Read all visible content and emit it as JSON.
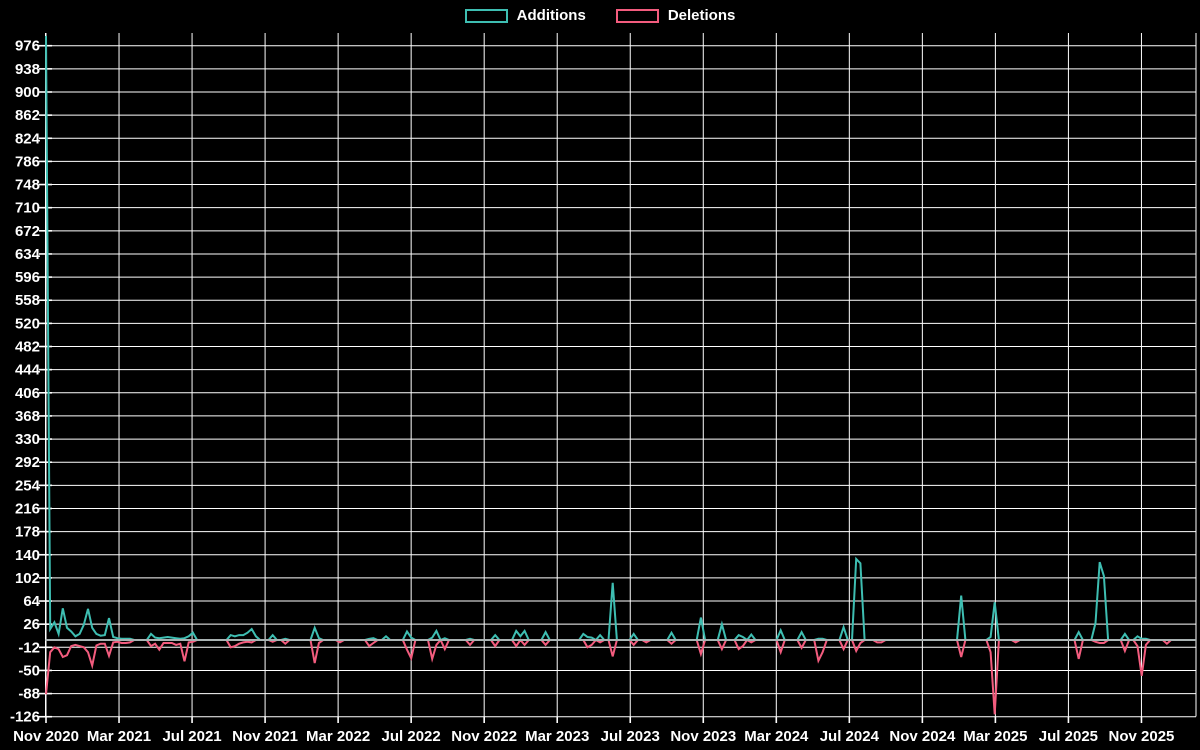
{
  "legend": {
    "items": [
      {
        "label": "Additions",
        "color": "#3ebeb2"
      },
      {
        "label": "Deletions",
        "color": "#f35c7e"
      }
    ]
  },
  "colors": {
    "background": "#000000",
    "grid": "#ffffff",
    "axis_text": "#ffffff",
    "zero_line": "#a9b2b2",
    "additions": "#3ebeb2",
    "deletions": "#f35c7e"
  },
  "chart_data": {
    "type": "line",
    "title": "",
    "xlabel": "",
    "ylabel": "",
    "grid": true,
    "legend_position": "top-center",
    "x_unit": "week",
    "weeks_total": 274,
    "default_value": 0,
    "x_tick_labels": [
      "Nov 2020",
      "Mar 2021",
      "Jul 2021",
      "Nov 2021",
      "Mar 2022",
      "Jul 2022",
      "Nov 2022",
      "Mar 2023",
      "Jul 2023",
      "Nov 2023",
      "Mar 2024",
      "Jul 2024",
      "Nov 2024",
      "Mar 2025",
      "Jul 2025",
      "Nov 2025"
    ],
    "y_axis": {
      "tick_min": -126,
      "tick_max": 976,
      "tick_step": 38,
      "ylim": [
        -126,
        997
      ]
    },
    "series": [
      {
        "name": "Additions",
        "color": "#3ebeb2",
        "sparse_points": [
          [
            0,
            992
          ],
          [
            1,
            18
          ],
          [
            2,
            29
          ],
          [
            3,
            10
          ],
          [
            4,
            52
          ],
          [
            5,
            20
          ],
          [
            6,
            14
          ],
          [
            7,
            6
          ],
          [
            8,
            10
          ],
          [
            9,
            25
          ],
          [
            10,
            51
          ],
          [
            11,
            20
          ],
          [
            12,
            10
          ],
          [
            13,
            7
          ],
          [
            14,
            8
          ],
          [
            15,
            36
          ],
          [
            16,
            5
          ],
          [
            17,
            3
          ],
          [
            18,
            2
          ],
          [
            19,
            2
          ],
          [
            20,
            2
          ],
          [
            25,
            10
          ],
          [
            26,
            4
          ],
          [
            27,
            3
          ],
          [
            28,
            4
          ],
          [
            29,
            5
          ],
          [
            30,
            4
          ],
          [
            31,
            3
          ],
          [
            32,
            2
          ],
          [
            33,
            3
          ],
          [
            34,
            6
          ],
          [
            35,
            12
          ],
          [
            44,
            8
          ],
          [
            45,
            6
          ],
          [
            46,
            8
          ],
          [
            47,
            8
          ],
          [
            48,
            12
          ],
          [
            49,
            18
          ],
          [
            50,
            6
          ],
          [
            54,
            8
          ],
          [
            57,
            2
          ],
          [
            64,
            20
          ],
          [
            65,
            3
          ],
          [
            77,
            2
          ],
          [
            78,
            3
          ],
          [
            81,
            6
          ],
          [
            86,
            14
          ],
          [
            87,
            4
          ],
          [
            92,
            4
          ],
          [
            93,
            15
          ],
          [
            95,
            3
          ],
          [
            101,
            2
          ],
          [
            107,
            8
          ],
          [
            112,
            15
          ],
          [
            113,
            6
          ],
          [
            114,
            15
          ],
          [
            119,
            13
          ],
          [
            128,
            10
          ],
          [
            129,
            5
          ],
          [
            130,
            4
          ],
          [
            132,
            8
          ],
          [
            135,
            94
          ],
          [
            140,
            10
          ],
          [
            149,
            12
          ],
          [
            156,
            37
          ],
          [
            161,
            26
          ],
          [
            165,
            8
          ],
          [
            166,
            5
          ],
          [
            168,
            9
          ],
          [
            175,
            16
          ],
          [
            180,
            13
          ],
          [
            184,
            2
          ],
          [
            185,
            2
          ],
          [
            190,
            21
          ],
          [
            193,
            133
          ],
          [
            194,
            126
          ],
          [
            218,
            73
          ],
          [
            225,
            5
          ],
          [
            226,
            62
          ],
          [
            246,
            13
          ],
          [
            250,
            28
          ],
          [
            251,
            128
          ],
          [
            252,
            105
          ],
          [
            257,
            10
          ],
          [
            260,
            6
          ],
          [
            261,
            2
          ],
          [
            262,
            2
          ]
        ]
      },
      {
        "name": "Deletions",
        "color": "#f35c7e",
        "sparse_points": [
          [
            0,
            -89
          ],
          [
            1,
            -20
          ],
          [
            2,
            -12
          ],
          [
            3,
            -15
          ],
          [
            4,
            -28
          ],
          [
            5,
            -25
          ],
          [
            6,
            -10
          ],
          [
            7,
            -8
          ],
          [
            8,
            -10
          ],
          [
            9,
            -12
          ],
          [
            10,
            -20
          ],
          [
            11,
            -42
          ],
          [
            12,
            -9
          ],
          [
            13,
            -6
          ],
          [
            14,
            -6
          ],
          [
            15,
            -26
          ],
          [
            16,
            -4
          ],
          [
            17,
            -3
          ],
          [
            18,
            -5
          ],
          [
            19,
            -5
          ],
          [
            20,
            -4
          ],
          [
            25,
            -10
          ],
          [
            26,
            -6
          ],
          [
            27,
            -16
          ],
          [
            28,
            -5
          ],
          [
            29,
            -5
          ],
          [
            30,
            -5
          ],
          [
            31,
            -8
          ],
          [
            32,
            -6
          ],
          [
            33,
            -35
          ],
          [
            34,
            -4
          ],
          [
            35,
            -3
          ],
          [
            44,
            -12
          ],
          [
            45,
            -10
          ],
          [
            46,
            -6
          ],
          [
            47,
            -4
          ],
          [
            48,
            -3
          ],
          [
            49,
            -4
          ],
          [
            54,
            -3
          ],
          [
            57,
            -6
          ],
          [
            64,
            -38
          ],
          [
            65,
            -5
          ],
          [
            70,
            -4
          ],
          [
            77,
            -10
          ],
          [
            78,
            -5
          ],
          [
            86,
            -16
          ],
          [
            87,
            -30
          ],
          [
            92,
            -31
          ],
          [
            93,
            -8
          ],
          [
            95,
            -15
          ],
          [
            101,
            -8
          ],
          [
            107,
            -10
          ],
          [
            112,
            -10
          ],
          [
            114,
            -8
          ],
          [
            119,
            -8
          ],
          [
            129,
            -12
          ],
          [
            130,
            -8
          ],
          [
            132,
            -4
          ],
          [
            135,
            -27
          ],
          [
            140,
            -8
          ],
          [
            143,
            -4
          ],
          [
            149,
            -6
          ],
          [
            156,
            -23
          ],
          [
            161,
            -15
          ],
          [
            165,
            -15
          ],
          [
            166,
            -10
          ],
          [
            168,
            -4
          ],
          [
            175,
            -20
          ],
          [
            180,
            -13
          ],
          [
            184,
            -34
          ],
          [
            185,
            -20
          ],
          [
            190,
            -15
          ],
          [
            193,
            -18
          ],
          [
            194,
            -5
          ],
          [
            198,
            -4
          ],
          [
            199,
            -4
          ],
          [
            218,
            -28
          ],
          [
            225,
            -20
          ],
          [
            226,
            -122
          ],
          [
            231,
            -4
          ],
          [
            246,
            -31
          ],
          [
            250,
            -3
          ],
          [
            251,
            -5
          ],
          [
            252,
            -5
          ],
          [
            257,
            -18
          ],
          [
            260,
            -10
          ],
          [
            261,
            -59
          ],
          [
            262,
            -8
          ],
          [
            267,
            -6
          ]
        ]
      }
    ]
  }
}
